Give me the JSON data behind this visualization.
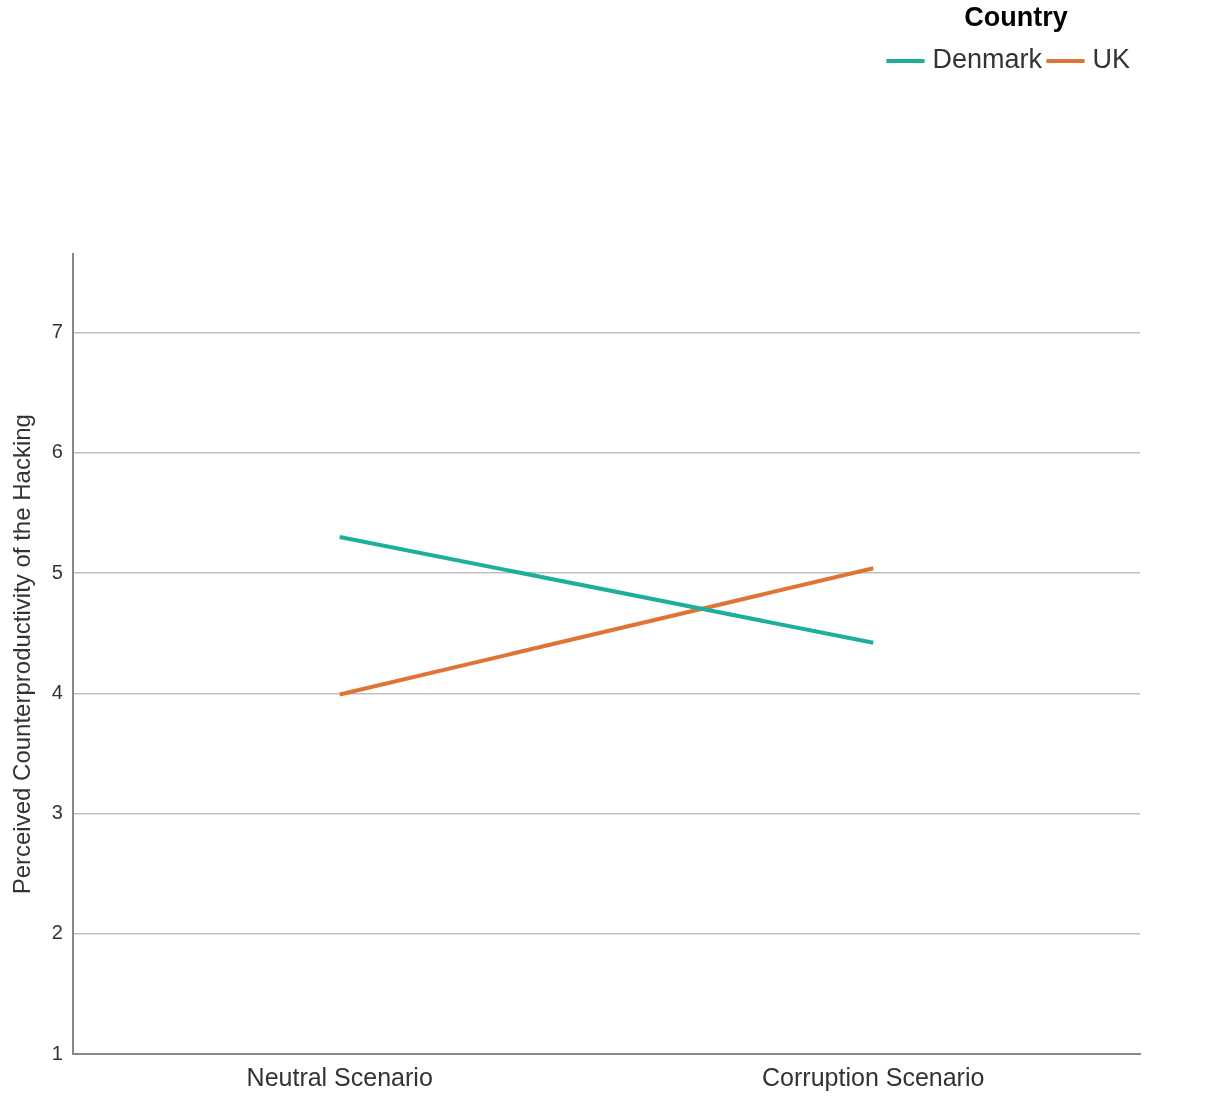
{
  "chart_data": {
    "type": "line",
    "ylabel": "Perceived Counterproductivity of the Hacking",
    "legend_title": "Country",
    "categories": [
      "Neutral Scenario",
      "Corruption Scenario"
    ],
    "series": [
      {
        "name": "Denmark",
        "color": "#1daf9c",
        "values": [
          5.3,
          4.42
        ]
      },
      {
        "name": "UK",
        "color": "#e07436",
        "values": [
          3.99,
          5.04
        ]
      }
    ],
    "ylim": [
      1,
      7.65
    ],
    "yticks": [
      1,
      2,
      3,
      4,
      5,
      6,
      7
    ],
    "grid": "y",
    "legend": "top right",
    "marker": "none",
    "line_style": "solid"
  }
}
